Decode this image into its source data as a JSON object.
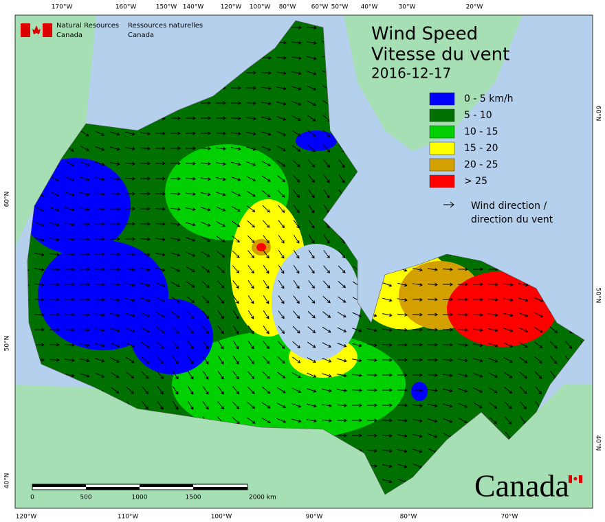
{
  "header": {
    "agency_en": [
      "Natural Resources",
      "Canada"
    ],
    "agency_fr": [
      "Ressources naturelles",
      "Canada"
    ]
  },
  "title": [
    "Wind Speed",
    "Vitesse du vent"
  ],
  "date": "2016-12-17",
  "legend": {
    "items": [
      {
        "label": "0 - 5 km/h",
        "color": "#0000ff"
      },
      {
        "label": "5 - 10",
        "color": "#007000"
      },
      {
        "label": "10 - 15",
        "color": "#00d000"
      },
      {
        "label": "15 - 20",
        "color": "#ffff00"
      },
      {
        "label": "20 - 25",
        "color": "#d4a000"
      },
      {
        "label": "> 25",
        "color": "#ff0000"
      }
    ],
    "arrow_label": [
      "Wind direction /",
      "direction du vent"
    ]
  },
  "graticule": {
    "top": [
      "170°W",
      "160°W",
      "150°W",
      "140°W",
      "120°W",
      "100°W",
      "80°W",
      "60°W",
      "50°W",
      "40°W",
      "30°W",
      "20°W"
    ],
    "bottom": [
      "120°W",
      "110°W",
      "100°W",
      "90°W",
      "80°W",
      "70°W"
    ],
    "left": [
      "60°N",
      "50°N",
      "40°N"
    ],
    "right": [
      "60°N",
      "50°N",
      "40°N"
    ]
  },
  "scale_bar": {
    "labels": [
      "0",
      "500",
      "1000",
      "1500",
      "2000 km"
    ]
  },
  "wordmark": "Canada"
}
